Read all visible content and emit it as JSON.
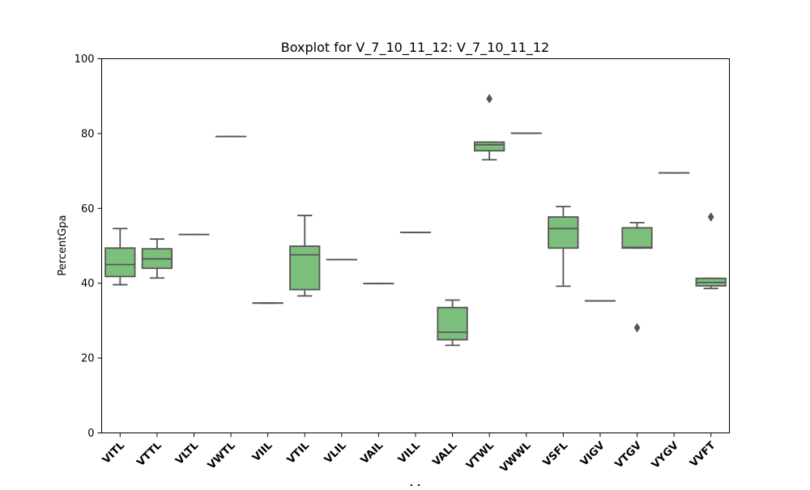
{
  "chart_data": {
    "type": "box",
    "title": "Boxplot for V_7_10_11_12: V_7_10_11_12",
    "xlabel": "AA",
    "ylabel": "PercentGpa",
    "ylim": [
      0,
      100
    ],
    "yticks": [
      0,
      20,
      40,
      60,
      80,
      100
    ],
    "grid": false,
    "legend": "none",
    "box_color": "#7cbf7c",
    "line_color": "#555555",
    "categories": [
      "VITL",
      "VTTL",
      "VLTL",
      "VWTL",
      "VIIL",
      "VTIL",
      "VLIL",
      "VAIL",
      "VILL",
      "VALL",
      "VTWL",
      "VWWL",
      "VSFL",
      "VIGV",
      "VTGV",
      "VYGV",
      "VVFT"
    ],
    "boxes": [
      {
        "category": "VITL",
        "whisker_low": 39.6,
        "q1": 41.8,
        "median": 45.0,
        "q3": 49.4,
        "whisker_high": 54.6,
        "outliers": []
      },
      {
        "category": "VTTL",
        "whisker_low": 41.4,
        "q1": 44.0,
        "median": 46.5,
        "q3": 49.2,
        "whisker_high": 51.8,
        "outliers": []
      },
      {
        "category": "VLTL",
        "whisker_low": 53.0,
        "q1": 53.0,
        "median": 53.0,
        "q3": 53.0,
        "whisker_high": 53.0,
        "outliers": []
      },
      {
        "category": "VWTL",
        "whisker_low": 79.2,
        "q1": 79.2,
        "median": 79.2,
        "q3": 79.2,
        "whisker_high": 79.2,
        "outliers": []
      },
      {
        "category": "VIIL",
        "whisker_low": 34.7,
        "q1": 34.7,
        "median": 34.7,
        "q3": 34.7,
        "whisker_high": 34.7,
        "outliers": []
      },
      {
        "category": "VTIL",
        "whisker_low": 36.6,
        "q1": 38.3,
        "median": 47.6,
        "q3": 49.9,
        "whisker_high": 58.1,
        "outliers": []
      },
      {
        "category": "VLIL",
        "whisker_low": 46.3,
        "q1": 46.3,
        "median": 46.3,
        "q3": 46.3,
        "whisker_high": 46.3,
        "outliers": []
      },
      {
        "category": "VAIL",
        "whisker_low": 39.9,
        "q1": 39.9,
        "median": 39.9,
        "q3": 39.9,
        "whisker_high": 39.9,
        "outliers": []
      },
      {
        "category": "VILL",
        "whisker_low": 53.6,
        "q1": 53.6,
        "median": 53.6,
        "q3": 53.6,
        "whisker_high": 53.6,
        "outliers": []
      },
      {
        "category": "VALL",
        "whisker_low": 23.4,
        "q1": 24.9,
        "median": 26.9,
        "q3": 33.5,
        "whisker_high": 35.5,
        "outliers": []
      },
      {
        "category": "VTWL",
        "whisker_low": 73.0,
        "q1": 75.4,
        "median": 77.0,
        "q3": 77.7,
        "whisker_high": 77.7,
        "outliers": [
          89.3
        ]
      },
      {
        "category": "VWWL",
        "whisker_low": 80.1,
        "q1": 80.1,
        "median": 80.1,
        "q3": 80.1,
        "whisker_high": 80.1,
        "outliers": []
      },
      {
        "category": "VSFL",
        "whisker_low": 39.2,
        "q1": 49.4,
        "median": 54.6,
        "q3": 57.7,
        "whisker_high": 60.5,
        "outliers": []
      },
      {
        "category": "VIGV",
        "whisker_low": 35.3,
        "q1": 35.3,
        "median": 35.3,
        "q3": 35.3,
        "whisker_high": 35.3,
        "outliers": []
      },
      {
        "category": "VTGV",
        "whisker_low": 49.4,
        "q1": 49.4,
        "median": 49.6,
        "q3": 54.8,
        "whisker_high": 56.2,
        "outliers": [
          28.1
        ]
      },
      {
        "category": "VYGV",
        "whisker_low": 69.5,
        "q1": 69.5,
        "median": 69.5,
        "q3": 69.5,
        "whisker_high": 69.5,
        "outliers": []
      },
      {
        "category": "VVFT",
        "whisker_low": 38.6,
        "q1": 39.3,
        "median": 40.2,
        "q3": 41.3,
        "whisker_high": 41.3,
        "outliers": [
          57.7
        ]
      }
    ]
  }
}
